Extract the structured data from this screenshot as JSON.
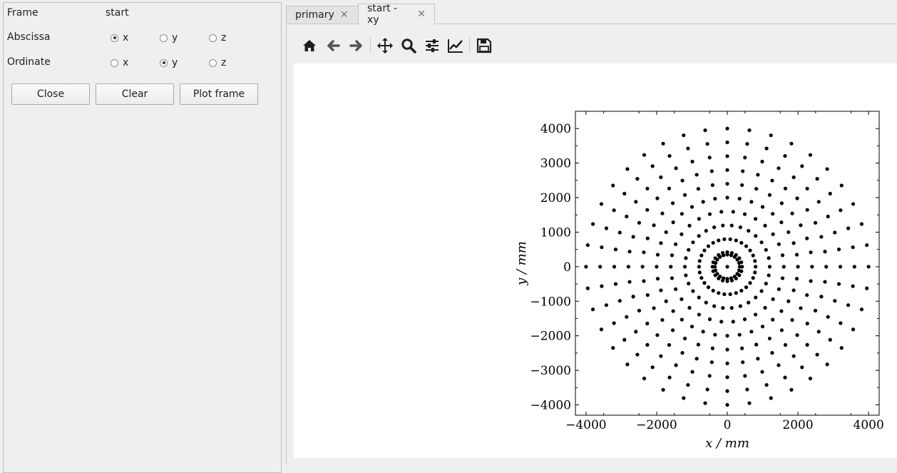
{
  "left_panel": {
    "frame_label": "Frame",
    "frame_value": "start",
    "abscissa_label": "Abscissa",
    "ordinate_label": "Ordinate",
    "abscissa_options": [
      "x",
      "y",
      "z"
    ],
    "abscissa_selected": "x",
    "ordinate_options": [
      "x",
      "y",
      "z"
    ],
    "ordinate_selected": "y",
    "buttons": {
      "close": "Close",
      "clear": "Clear",
      "plot_frame": "Plot frame"
    }
  },
  "tabs": [
    {
      "label": "primary",
      "active": false
    },
    {
      "label": "start - xy",
      "active": true
    }
  ],
  "toolbar": {
    "icons": [
      "home-icon",
      "back-arrow-icon",
      "forward-arrow-icon",
      "pan-move-icon",
      "zoom-magnifier-icon",
      "configure-subplots-icon",
      "edit-axis-line-icon",
      "save-floppy-icon"
    ]
  },
  "chart_data": {
    "type": "scatter",
    "xlabel": "x / mm",
    "ylabel": "y / mm",
    "xlim": [
      -4300,
      4300
    ],
    "ylim": [
      -4300,
      4500
    ],
    "xticks": [
      -4000,
      -2000,
      0,
      2000,
      4000
    ],
    "yticks": [
      4000,
      3000,
      2000,
      1000,
      0,
      -1000,
      -2000,
      -3000,
      -4000
    ],
    "tick_labels_x": [
      "−4000",
      "−2000",
      "0",
      "2000",
      "4000"
    ],
    "tick_labels_y": [
      "4000",
      "3000",
      "2000",
      "1000",
      "0",
      "−1000",
      "−2000",
      "−3000",
      "−4000"
    ],
    "grid": false,
    "series": [
      {
        "description": "concentric rings of points centered at origin",
        "rings": [
          {
            "radius": 0,
            "count": 1
          },
          {
            "radius": 350,
            "count": 20
          },
          {
            "radius": 420,
            "count": 20
          },
          {
            "radius": 800,
            "count": 30
          },
          {
            "radius": 1200,
            "count": 30
          },
          {
            "radius": 1600,
            "count": 30
          },
          {
            "radius": 2000,
            "count": 36
          },
          {
            "radius": 2400,
            "count": 36
          },
          {
            "radius": 2800,
            "count": 40
          },
          {
            "radius": 3200,
            "count": 40
          },
          {
            "radius": 3600,
            "count": 40
          },
          {
            "radius": 4000,
            "count": 40
          }
        ]
      }
    ]
  }
}
